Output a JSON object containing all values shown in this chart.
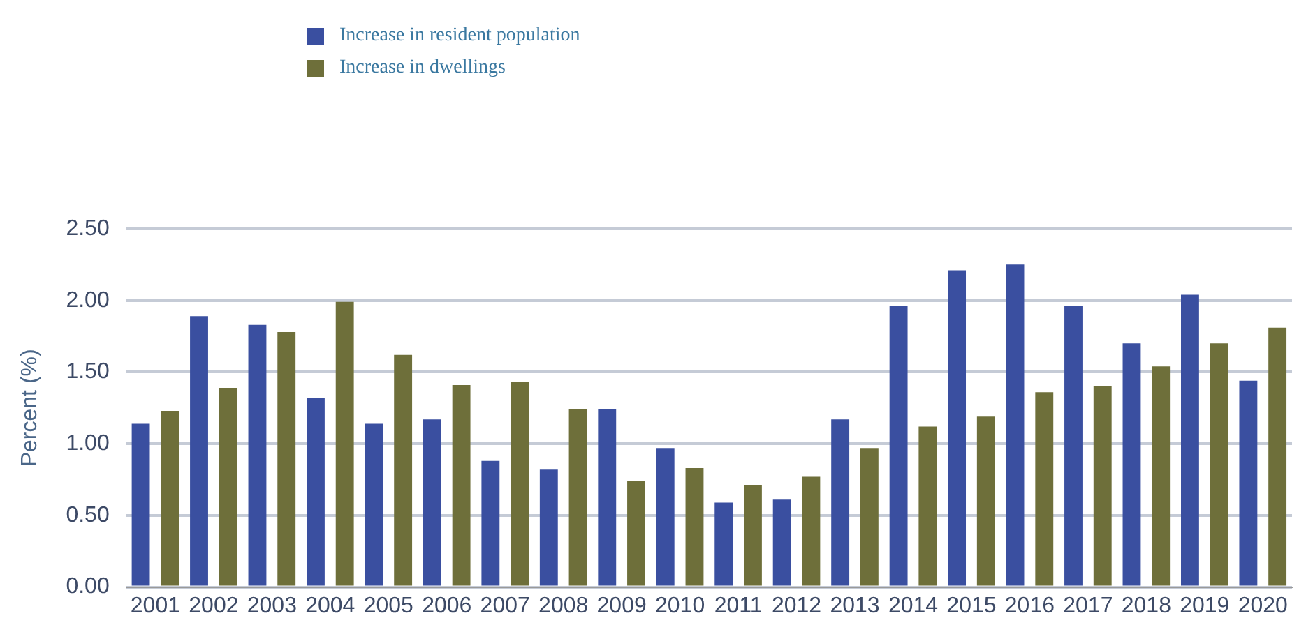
{
  "chart_data": {
    "type": "bar",
    "ylabel": "Percent (%)",
    "categories": [
      "2001",
      "2002",
      "2003",
      "2004",
      "2005",
      "2006",
      "2007",
      "2008",
      "2009",
      "2010",
      "2011",
      "2012",
      "2013",
      "2014",
      "2015",
      "2016",
      "2017",
      "2018",
      "2019",
      "2020"
    ],
    "series": [
      {
        "name": "Increase in resident population",
        "color": "#3a4fa0",
        "values": [
          1.14,
          1.89,
          1.83,
          1.32,
          1.14,
          1.17,
          0.88,
          0.82,
          1.24,
          0.97,
          0.59,
          0.61,
          1.17,
          1.96,
          2.21,
          2.25,
          1.96,
          1.7,
          2.04,
          1.44
        ]
      },
      {
        "name": "Increase in dwellings",
        "color": "#6e6f3a",
        "values": [
          1.23,
          1.39,
          1.78,
          1.99,
          1.62,
          1.41,
          1.43,
          1.24,
          0.74,
          0.83,
          0.71,
          0.77,
          0.97,
          1.12,
          1.19,
          1.36,
          1.4,
          1.54,
          1.7,
          1.81
        ]
      }
    ],
    "ylim": [
      0,
      2.5
    ],
    "yticks": [
      {
        "value": 0,
        "label": "0.00"
      },
      {
        "value": 0.5,
        "label": "0.50"
      },
      {
        "value": 1,
        "label": "1.00"
      },
      {
        "value": 1.5,
        "label": "1.50"
      },
      {
        "value": 2,
        "label": "2.00"
      },
      {
        "value": 2.5,
        "label": "2.50"
      }
    ],
    "grid": "y",
    "legend": "top left"
  }
}
